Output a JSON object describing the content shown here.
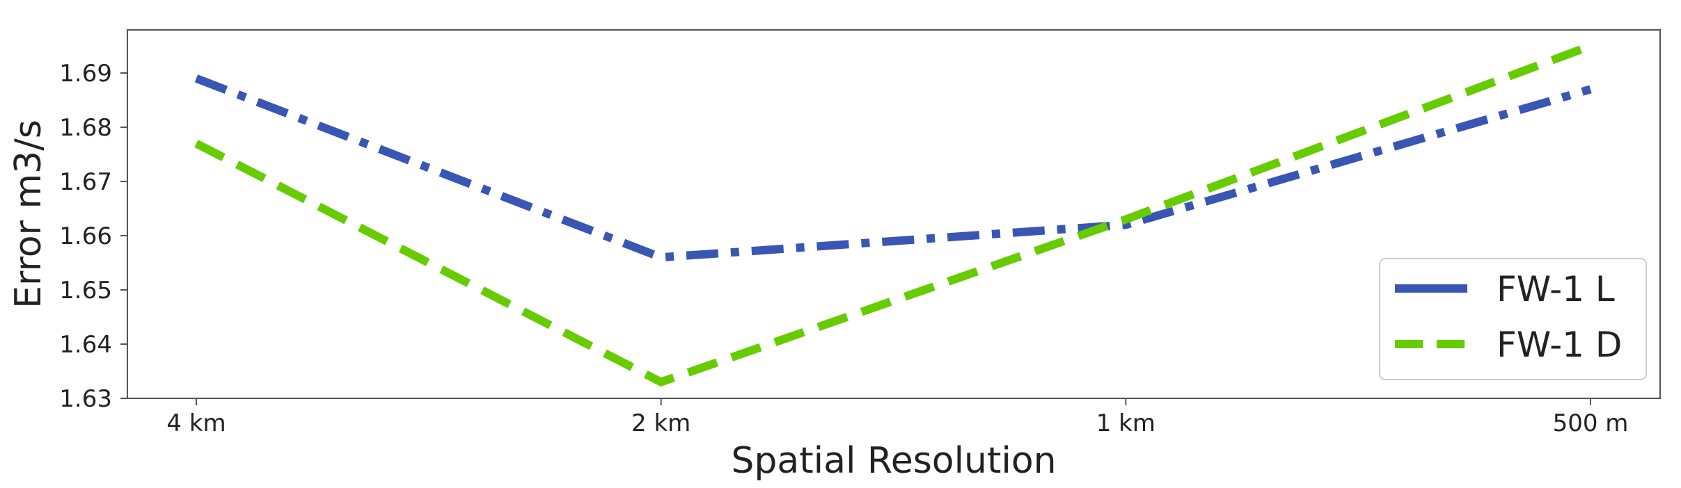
{
  "chart_data": {
    "type": "line",
    "categories": [
      "4 km",
      "2 km",
      "1 km",
      "500 m"
    ],
    "xlabel": "Spatial Resolution",
    "ylabel": "Error m3/s",
    "ylim": [
      1.63,
      1.699
    ],
    "yticks": [
      "1.63",
      "1.64",
      "1.65",
      "1.66",
      "1.67",
      "1.68",
      "1.69"
    ],
    "grid": false,
    "legend_position": "lower-right",
    "series": [
      {
        "name": "FW-1 L",
        "values": [
          1.689,
          1.656,
          1.662,
          1.687
        ],
        "color": "#3a56b4",
        "dash": "dash-dot"
      },
      {
        "name": "FW-1 D",
        "values": [
          1.677,
          1.633,
          1.663,
          1.695
        ],
        "color": "#66cc00",
        "dash": "dashed"
      }
    ]
  }
}
